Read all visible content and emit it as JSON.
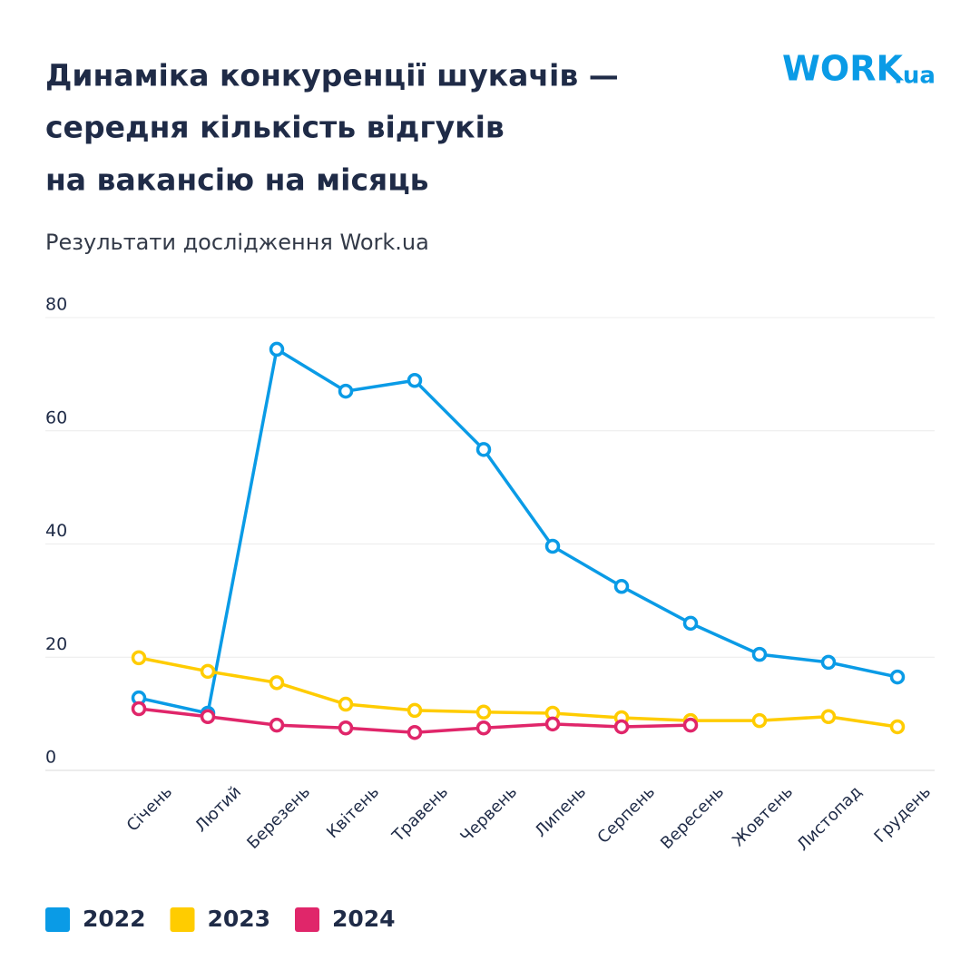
{
  "chart_data": {
    "type": "line",
    "title_lines": [
      "Динаміка конкуренції шукачів —",
      "середня кількість відгуків",
      "на вакансію на місяць"
    ],
    "subtitle": "Результати дослідження Work.ua",
    "logo": {
      "main": "WORK",
      "suffix": ".ua"
    },
    "categories": [
      "Січень",
      "Лютий",
      "Березень",
      "Квітень",
      "Травень",
      "Червень",
      "Липень",
      "Серпень",
      "Вересень",
      "Жовтень",
      "Листопад",
      "Грудень"
    ],
    "series": [
      {
        "name": "2022",
        "color": "#0a9be6",
        "values": [
          12.8,
          10.1,
          74.4,
          67.0,
          68.9,
          56.7,
          39.6,
          32.5,
          26.0,
          20.5,
          19.1,
          16.5
        ]
      },
      {
        "name": "2023",
        "color": "#ffcc00",
        "values": [
          19.9,
          17.5,
          15.5,
          11.7,
          10.6,
          10.3,
          10.1,
          9.3,
          8.8,
          8.8,
          9.5,
          7.7
        ]
      },
      {
        "name": "2024",
        "color": "#e0266a",
        "values": [
          10.9,
          9.5,
          8.0,
          7.5,
          6.7,
          7.5,
          8.2,
          7.7,
          8.0,
          null,
          null,
          null
        ]
      }
    ],
    "ylim": [
      0,
      80
    ],
    "yticks": [
      0,
      20,
      40,
      60,
      80
    ],
    "grid": true
  }
}
